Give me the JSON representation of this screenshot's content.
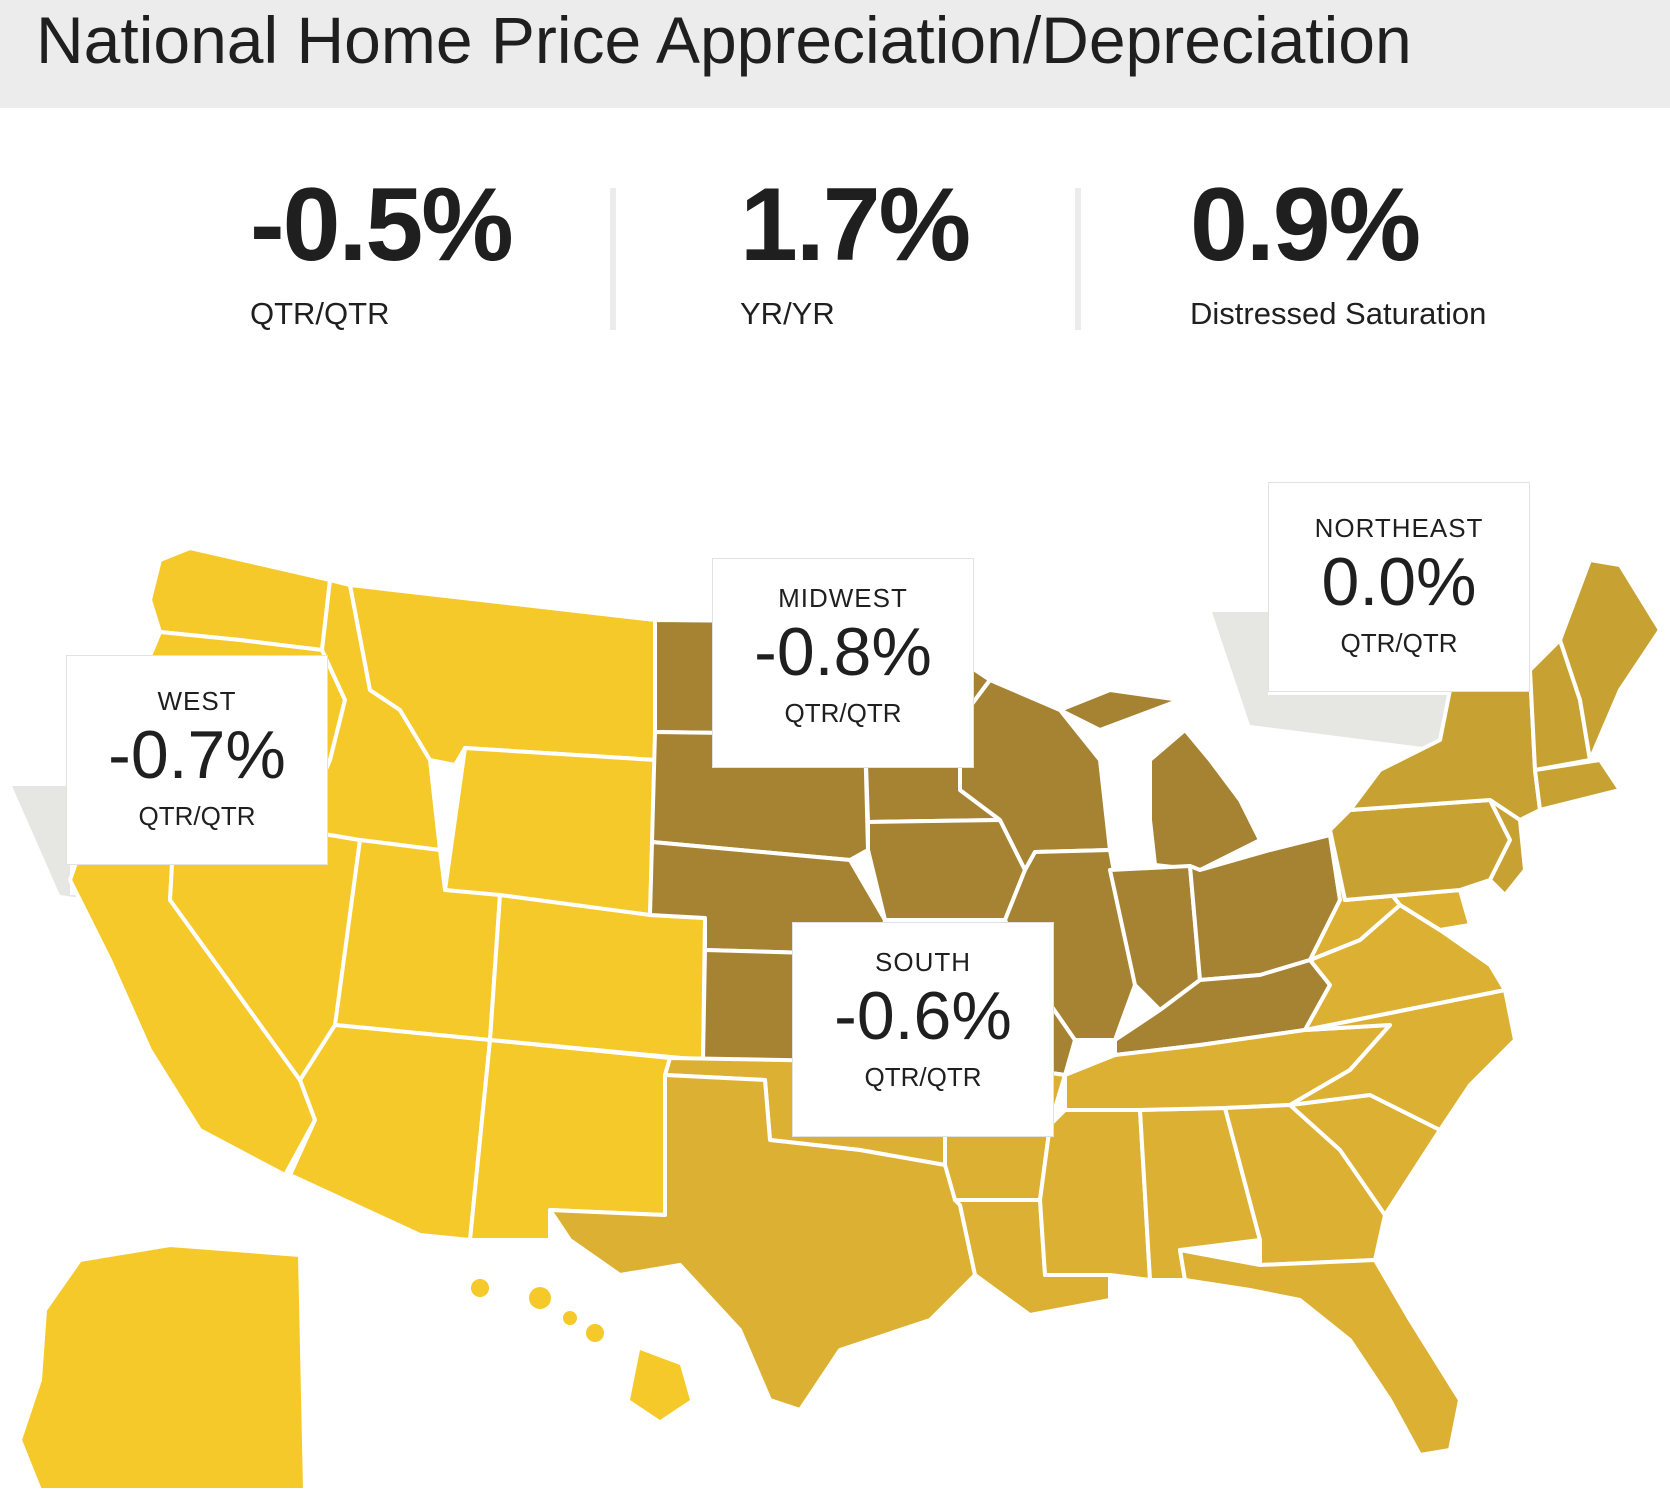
{
  "title": "National Home Price Appreciation/Depreciation",
  "stats": [
    {
      "value": "-0.5%",
      "label": "QTR/QTR"
    },
    {
      "value": "1.7%",
      "label": "YR/YR"
    },
    {
      "value": "0.9%",
      "label": "Distressed Saturation"
    }
  ],
  "regions": {
    "west": {
      "name": "WEST",
      "value": "-0.7%",
      "period": "QTR/QTR",
      "color": "#f6c92a"
    },
    "midwest": {
      "name": "MIDWEST",
      "value": "-0.8%",
      "period": "QTR/QTR",
      "color": "#a68333"
    },
    "northeast": {
      "name": "NORTHEAST",
      "value": "0.0%",
      "period": "QTR/QTR",
      "color": "#c7a233"
    },
    "south": {
      "name": "SOUTH",
      "value": "-0.6%",
      "period": "QTR/QTR",
      "color": "#dcb133"
    }
  },
  "colors": {
    "header_bg": "#ececec",
    "state_border": "#ffffff",
    "shadow": "#e6e6e3"
  }
}
